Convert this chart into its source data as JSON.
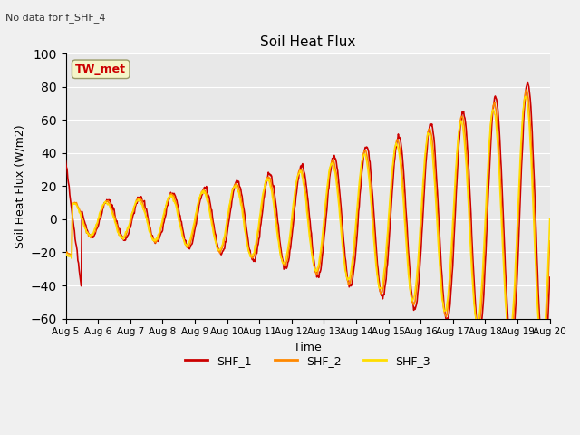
{
  "title": "Soil Heat Flux",
  "subtitle": "No data for f_SHF_4",
  "ylabel": "Soil Heat Flux (W/m2)",
  "xlabel": "Time",
  "ylim": [
    -60,
    100
  ],
  "yticks": [
    -60,
    -40,
    -20,
    0,
    20,
    40,
    60,
    80,
    100
  ],
  "x_labels": [
    "Aug 5",
    "Aug 6",
    "Aug 7",
    "Aug 8",
    "Aug 9",
    "Aug 10",
    "Aug 11",
    "Aug 12",
    "Aug 13",
    "Aug 14",
    "Aug 15",
    "Aug 16",
    "Aug 17",
    "Aug 18",
    "Aug 19",
    "Aug 20"
  ],
  "colors": {
    "SHF_1": "#cc0000",
    "SHF_2": "#ff8800",
    "SHF_3": "#ffdd00",
    "background": "#e8e8e8",
    "grid": "#ffffff"
  },
  "legend_label": "TW_met",
  "legend_entries": [
    "SHF_1",
    "SHF_2",
    "SHF_3"
  ],
  "line_width": 1.2
}
